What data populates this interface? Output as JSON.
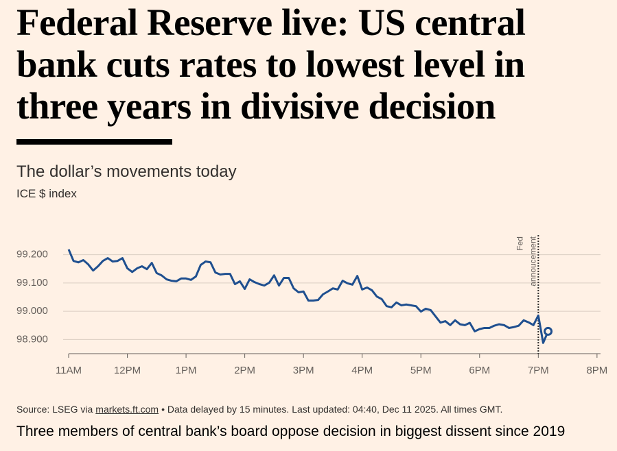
{
  "headline": [
    "Federal Reserve live: US central",
    "bank cuts rates to lowest level in",
    "three years in divisive decision"
  ],
  "chart_data": {
    "type": "line",
    "title": "The dollar’s movements today",
    "subtitle": "ICE $ index",
    "xlim": [
      11,
      20.06
    ],
    "xticks": [
      {
        "value": 11,
        "label": "11AM"
      },
      {
        "value": 12,
        "label": "12PM"
      },
      {
        "value": 13,
        "label": "1PM"
      },
      {
        "value": 14,
        "label": "2PM"
      },
      {
        "value": 15,
        "label": "3PM"
      },
      {
        "value": 16,
        "label": "4PM"
      },
      {
        "value": 17,
        "label": "5PM"
      },
      {
        "value": 18,
        "label": "6PM"
      },
      {
        "value": 19,
        "label": "7PM"
      },
      {
        "value": 20,
        "label": "8PM"
      }
    ],
    "ylim": [
      98.85,
      99.25
    ],
    "yticks": [
      {
        "value": 99.2,
        "label": "99.200"
      },
      {
        "value": 99.1,
        "label": "99.100"
      },
      {
        "value": 99,
        "label": "99.000"
      },
      {
        "value": 98.9,
        "label": "98.900"
      }
    ],
    "grid": true,
    "end_marker": true,
    "annotation": {
      "x": 19,
      "text": [
        "Fed",
        "annoucement"
      ]
    },
    "x": [
      11,
      11.083,
      11.167,
      11.25,
      11.333,
      11.417,
      11.5,
      11.583,
      11.667,
      11.75,
      11.833,
      11.917,
      12,
      12.083,
      12.167,
      12.25,
      12.333,
      12.417,
      12.5,
      12.583,
      12.667,
      12.75,
      12.833,
      12.917,
      13,
      13.083,
      13.167,
      13.25,
      13.333,
      13.417,
      13.5,
      13.583,
      13.667,
      13.75,
      13.833,
      13.917,
      14,
      14.083,
      14.167,
      14.25,
      14.333,
      14.417,
      14.5,
      14.583,
      14.667,
      14.75,
      14.833,
      14.917,
      15,
      15.083,
      15.167,
      15.25,
      15.333,
      15.417,
      15.5,
      15.583,
      15.667,
      15.75,
      15.833,
      15.917,
      16,
      16.083,
      16.167,
      16.25,
      16.333,
      16.417,
      16.5,
      16.583,
      16.667,
      16.75,
      16.833,
      16.917,
      17,
      17.083,
      17.167,
      17.25,
      17.333,
      17.417,
      17.5,
      17.583,
      17.667,
      17.75,
      17.833,
      17.917,
      18,
      18.083,
      18.167,
      18.25,
      18.333,
      18.417,
      18.5,
      18.583,
      18.667,
      18.75,
      18.833,
      18.917,
      19,
      19.083,
      19.167
    ],
    "series": [
      {
        "name": "ICE $ index",
        "color": "#1f4f8f",
        "values": [
          99.219,
          99.178,
          99.173,
          99.181,
          99.166,
          99.144,
          99.159,
          99.178,
          99.188,
          99.176,
          99.178,
          99.188,
          99.152,
          99.139,
          99.152,
          99.159,
          99.149,
          99.171,
          99.135,
          99.127,
          99.113,
          99.108,
          99.106,
          99.116,
          99.116,
          99.111,
          99.123,
          99.164,
          99.176,
          99.173,
          99.137,
          99.13,
          99.132,
          99.132,
          99.096,
          99.106,
          99.079,
          99.113,
          99.103,
          99.096,
          99.091,
          99.101,
          99.127,
          99.091,
          99.118,
          99.118,
          99.081,
          99.067,
          99.07,
          99.038,
          99.038,
          99.04,
          99.06,
          99.07,
          99.081,
          99.077,
          99.108,
          99.099,
          99.094,
          99.125,
          99.077,
          99.084,
          99.074,
          99.052,
          99.043,
          99.018,
          99.014,
          99.031,
          99.021,
          99.024,
          99.021,
          99.018,
          98.999,
          99.009,
          99.004,
          98.982,
          98.96,
          98.965,
          98.951,
          98.968,
          98.954,
          98.951,
          98.959,
          98.929,
          98.937,
          98.941,
          98.941,
          98.949,
          98.954,
          98.951,
          98.941,
          98.944,
          98.949,
          98.968,
          98.961,
          98.951,
          98.985,
          98.888,
          98.929
        ]
      }
    ]
  },
  "source_prefix": "Source: LSEG via",
  "source_link": "markets.ft.com",
  "source_suffix": "• Data delayed by 15 minutes. Last updated: 04:40, Dec 11 2025. All times GMT.",
  "caption": "Three members of central bank’s board oppose decision in biggest dissent since 2019"
}
